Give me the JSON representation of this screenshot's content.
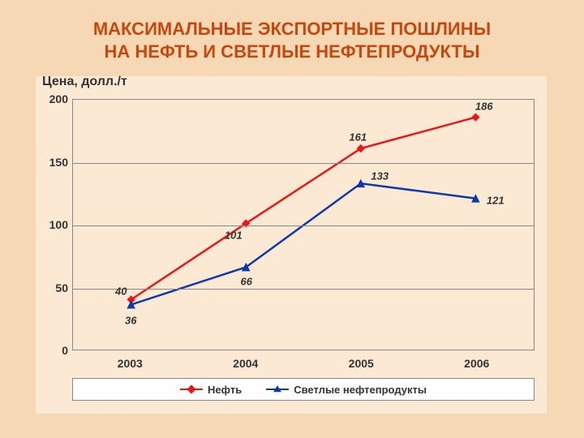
{
  "colors": {
    "slide_bg": "#f7d8b5",
    "chart_bg": "#fbe9d3",
    "title_color": "#c7480f",
    "text_color": "#333333",
    "grid_color": "#888888",
    "series1_color": "#e81818",
    "series2_color": "#1038a8"
  },
  "title_line1": "МАКСИМАЛЬНЫЕ ЭКСПОРТНЫЕ ПОШЛИНЫ",
  "title_line2": "НА НЕФТЬ И СВЕТЛЫЕ НЕФТЕПРОДУКТЫ",
  "ylabel": "Цена, долл./т",
  "chart": {
    "type": "line",
    "ylim": [
      0,
      200
    ],
    "ytick_step": 50,
    "yticks": [
      "0",
      "50",
      "100",
      "150",
      "200"
    ],
    "categories": [
      "2003",
      "2004",
      "2005",
      "2006"
    ],
    "series": [
      {
        "name": "Нефть",
        "color_key": "series1_color",
        "marker": "diamond",
        "values": [
          40,
          101,
          161,
          186
        ],
        "labels": [
          "40",
          "101",
          "161",
          "186"
        ],
        "label_dx": [
          -12,
          -16,
          -5,
          8
        ],
        "label_dy": [
          -12,
          14,
          -14,
          -14
        ]
      },
      {
        "name": "Светлые нефтепродукты",
        "color_key": "series2_color",
        "marker": "triangle",
        "values": [
          36,
          66,
          133,
          121
        ],
        "labels": [
          "36",
          "66",
          "133",
          "121"
        ],
        "label_dx": [
          0,
          0,
          22,
          22
        ],
        "label_dy": [
          18,
          16,
          -10,
          2
        ]
      }
    ],
    "line_width": 2.5,
    "marker_size": 9,
    "plot_inner_w": 570,
    "plot_inner_h": 310
  }
}
